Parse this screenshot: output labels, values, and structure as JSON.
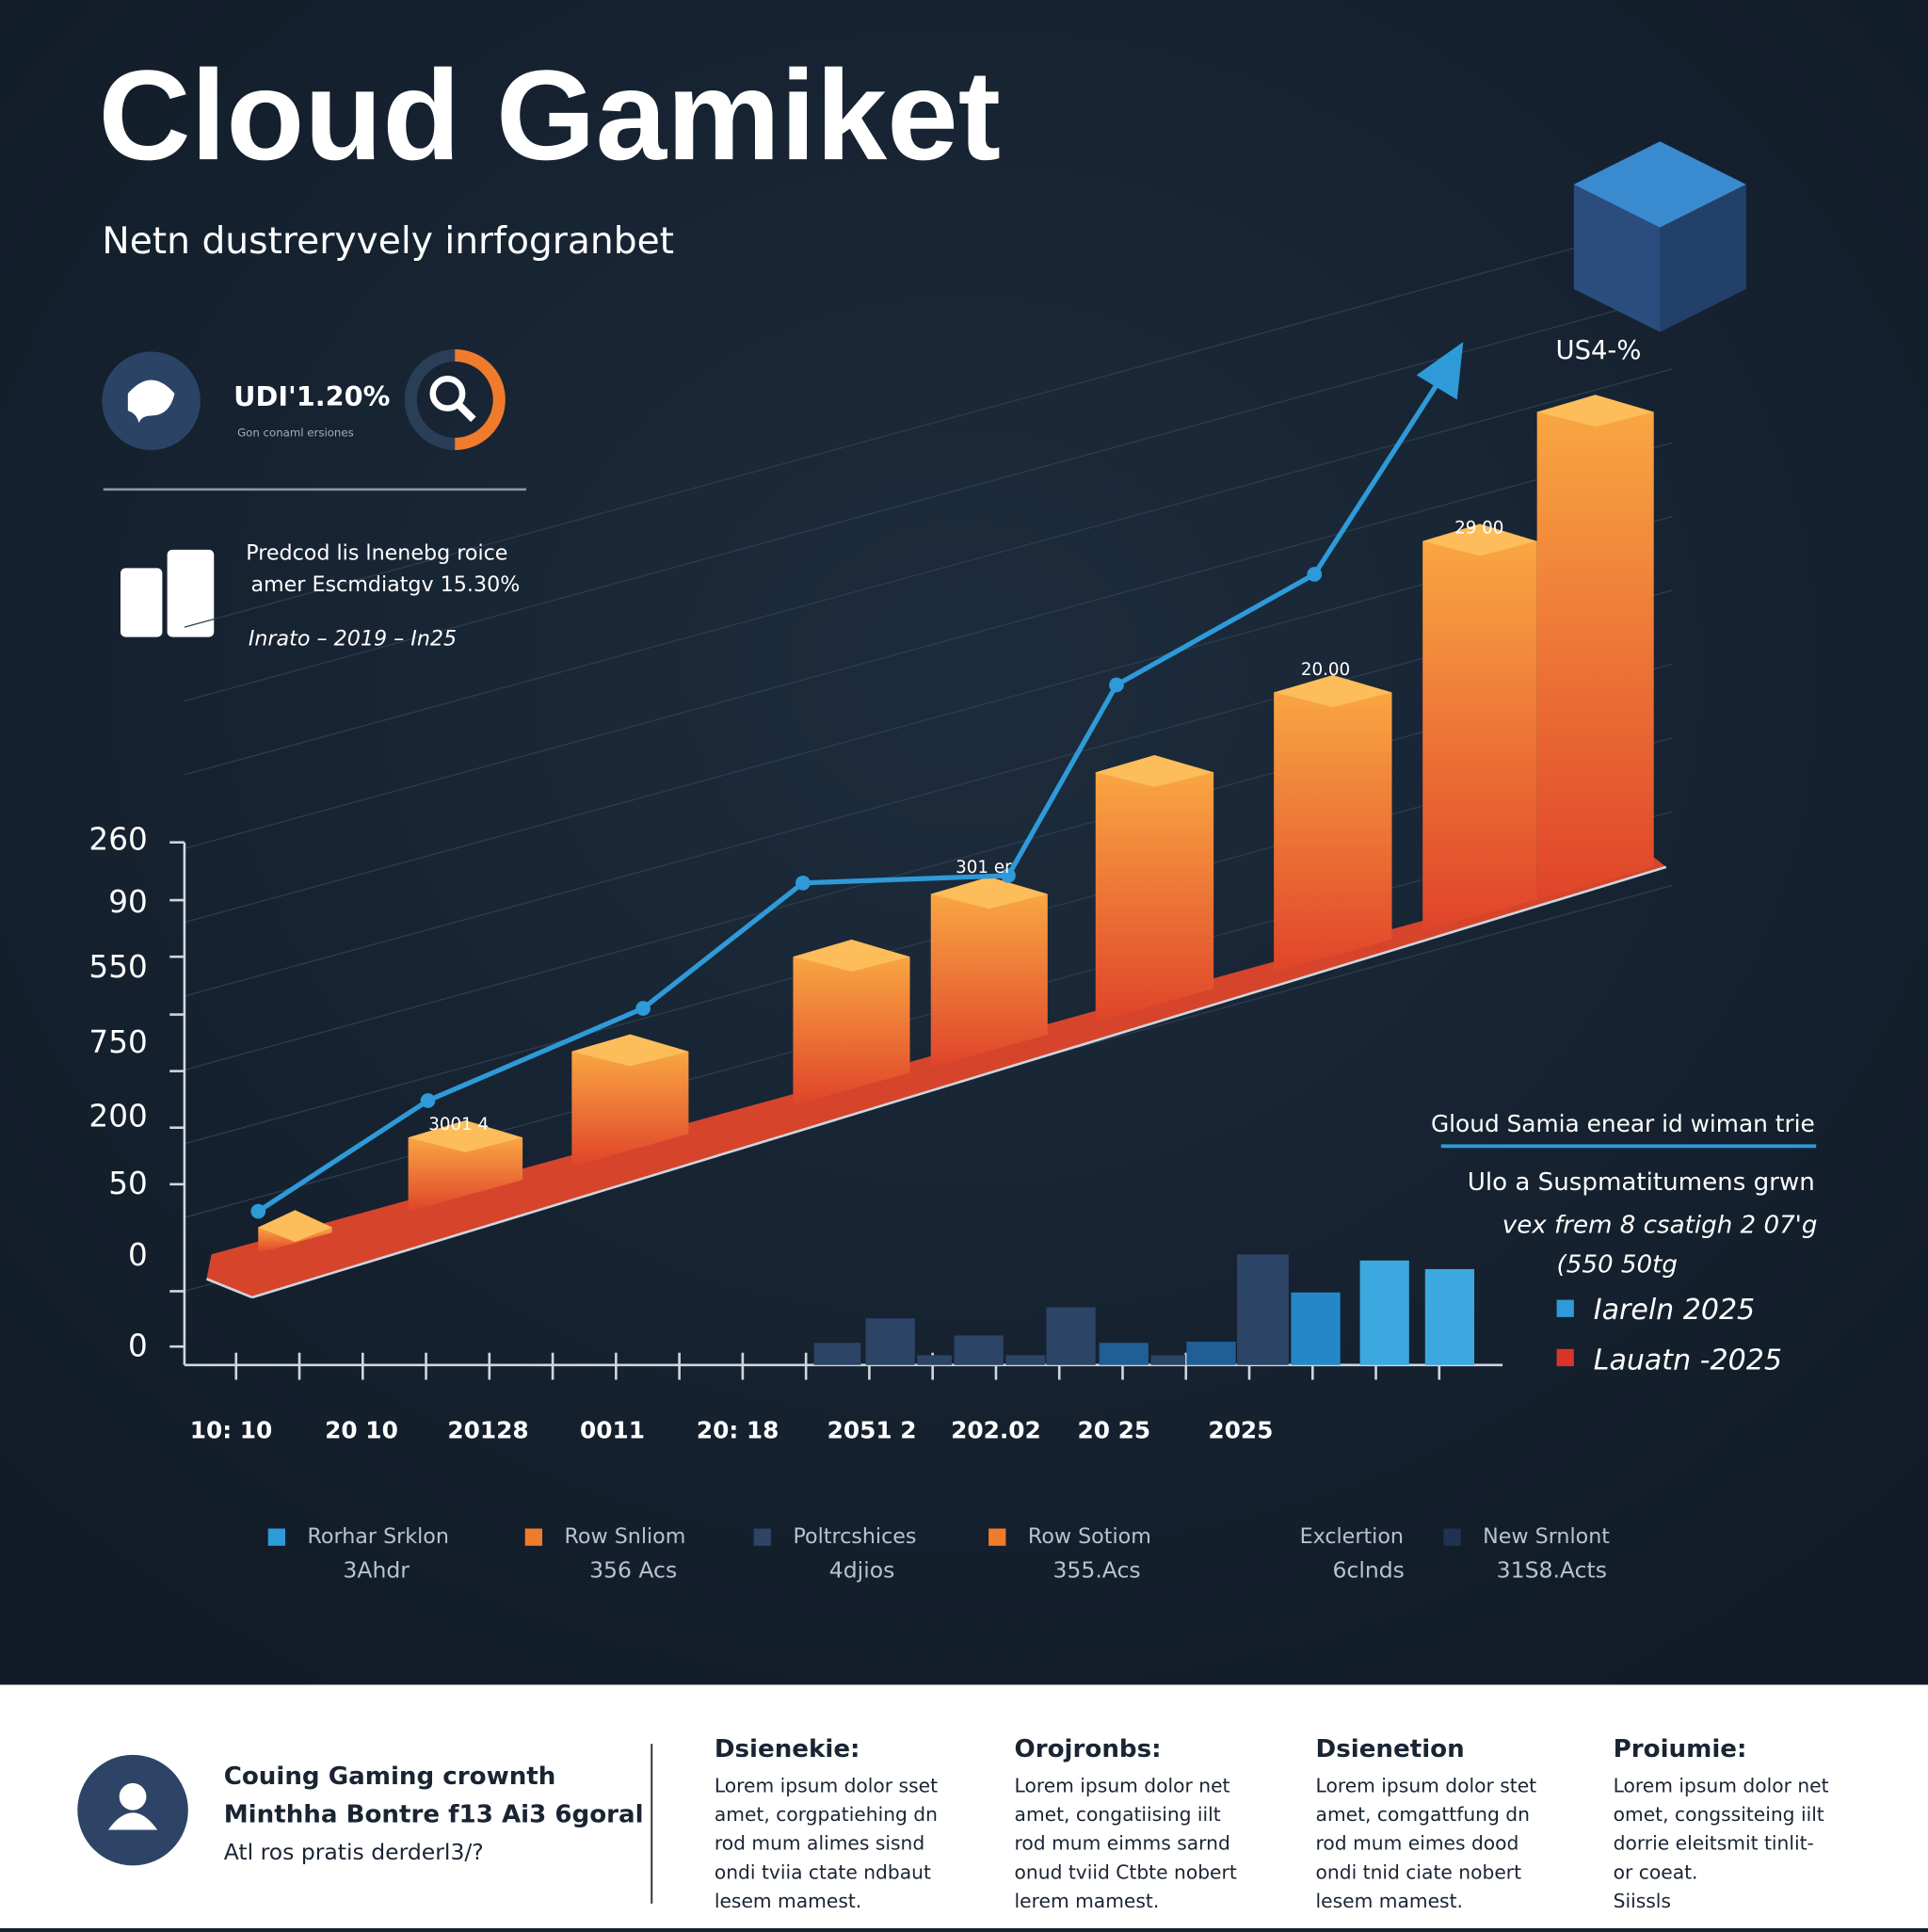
{
  "header": {
    "title": "Cloud Gamiket",
    "subtitle": "Netn dustreryvely inrfogranbet"
  },
  "stat": {
    "value": "UDI'1.20%",
    "caption": "Gon conaml ersiones"
  },
  "note": {
    "lines": [
      "Predcod lis lnenebg roice",
      "amer Escmdiatgv 15.30%",
      "Inrato – 2019 – In25"
    ]
  },
  "chart": {
    "y_labels": [
      "260",
      "90",
      "550",
      "750",
      "200",
      "50",
      "0",
      "0"
    ],
    "x_labels": [
      "10: 10",
      "20 10",
      "20128",
      "0011",
      "20: 18",
      "2051 2",
      "202.02",
      "20 25",
      "2025"
    ],
    "point_labels": [
      "3001 4",
      "301 er",
      "20.00",
      "29 00",
      "US4-%"
    ]
  },
  "side": {
    "title": "Gloud Samia enear id wiman trie",
    "lines": [
      "Ulo a Suspmatitumens grwn",
      "vex frem 8 csatigh 2 07'g",
      "(550 50tg"
    ],
    "legend": [
      "Iareln  2025",
      "Lauatn -2025"
    ]
  },
  "legend": [
    {
      "label": "Rorhar Srklon",
      "sub": "3Ahdr"
    },
    {
      "label": "Row Snliom",
      "sub": "356 Acs"
    },
    {
      "label": "Poltrcshices",
      "sub": "4djios"
    },
    {
      "label": "Row Sotiom",
      "sub": "355.Acs"
    },
    {
      "label": "Exclertion",
      "sub": "6clnds"
    },
    {
      "label": "New Srnlont",
      "sub": "31S8.Acts"
    }
  ],
  "footer": {
    "profile": [
      "Couing Gaming crownth",
      "Minthha Bontre f13 Ai3 6goral",
      "Atl ros pratis derderl3/?"
    ],
    "columns": [
      {
        "heading": "Dsienekie:",
        "lines": [
          "Lorem ipsum dolor sset",
          "amet, corgpatiehing dn",
          "rod mum alimes sisnd",
          "ondi tviia ctate ndbaut",
          "lesem mamest."
        ]
      },
      {
        "heading": "Orojronbs:",
        "lines": [
          "Lorem ipsum dolor net",
          "amet, congatiising iilt",
          "rod mum eimms sarnd",
          "onud tviid Ctbte nobert",
          "lerem mamest."
        ]
      },
      {
        "heading": "Dsienetion",
        "lines": [
          "Lorem ipsum dolor stet",
          "amet, comgattfung dn",
          "rod mum eimes dood",
          "ondi tnid ciate nobert",
          "lesem mamest."
        ]
      },
      {
        "heading": "Proiumie:",
        "lines": [
          "Lorem ipsum dolor net",
          "omet, congssiteing iilt",
          "dorrie eleitsmit tinlit-",
          "or coeat.",
          "Siissls"
        ]
      }
    ]
  }
}
